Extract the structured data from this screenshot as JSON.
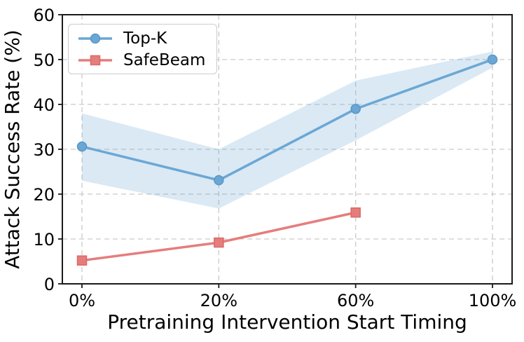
{
  "chart_data": {
    "type": "line",
    "title": "",
    "xlabel": "Pretraining Intervention Start Timing",
    "ylabel": "Attack Success Rate (%)",
    "x_tick_labels": [
      "0%",
      "20%",
      "60%",
      "100%"
    ],
    "y_ticks": [
      0,
      10,
      20,
      30,
      40,
      50,
      60
    ],
    "ylim": [
      0,
      60
    ],
    "grid": true,
    "grid_style": "dashed",
    "legend_position": "upper left",
    "series": [
      {
        "name": "Top-K",
        "color": "#6BA7D4",
        "marker_edge": "#5A97C6",
        "marker": "circle",
        "x": [
          "0%",
          "20%",
          "60%",
          "100%"
        ],
        "values": [
          30.6,
          23.1,
          39.0,
          50.0
        ],
        "band_upper": [
          38.0,
          30.0,
          45.3,
          51.8
        ],
        "band_lower": [
          23.0,
          16.8,
          32.0,
          48.2
        ],
        "band_opacity": 0.25
      },
      {
        "name": "SafeBeam",
        "color": "#E67D7D",
        "marker_edge": "#DB6868",
        "marker": "square",
        "x": [
          "0%",
          "20%",
          "60%"
        ],
        "values": [
          5.2,
          9.2,
          15.9
        ]
      }
    ]
  }
}
